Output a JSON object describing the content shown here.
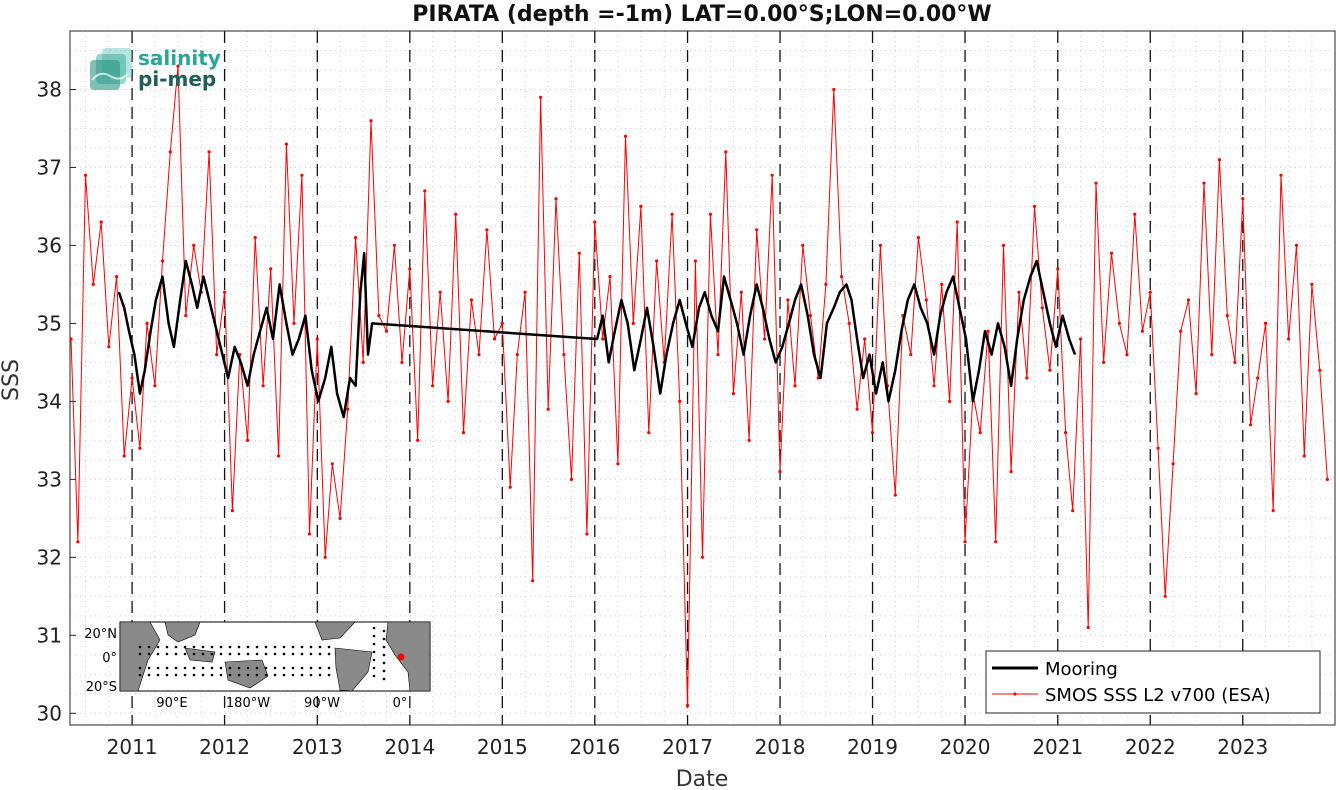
{
  "chart_data": {
    "type": "line",
    "title": "PIRATA (depth =-1m) LAT=0.00°S;LON=0.00°W",
    "xlabel": "Date",
    "ylabel": "SSS",
    "xlim": [
      "2010-05-01",
      "2023-12-31"
    ],
    "ylim": [
      29.85,
      38.75
    ],
    "x_ticks": [
      "2011",
      "2012",
      "2013",
      "2014",
      "2015",
      "2016",
      "2017",
      "2018",
      "2019",
      "2020",
      "2021",
      "2022",
      "2023"
    ],
    "y_ticks": [
      "30",
      "31",
      "32",
      "33",
      "34",
      "35",
      "36",
      "37",
      "38"
    ],
    "grid": "dotted",
    "year_boundaries": "dashed vertical lines at each January 1",
    "legend_position": "bottom-right",
    "series": [
      {
        "name": "Mooring",
        "color": "#000000",
        "style": "thick line",
        "x": [
          "2010-11-10",
          "2010-12-01",
          "2010-12-20",
          "2011-01-10",
          "2011-02-01",
          "2011-02-20",
          "2011-03-15",
          "2011-04-05",
          "2011-05-01",
          "2011-05-25",
          "2011-06-15",
          "2011-07-10",
          "2011-08-01",
          "2011-08-25",
          "2011-09-15",
          "2011-10-10",
          "2012-01-15",
          "2012-02-10",
          "2012-03-05",
          "2012-04-01",
          "2012-04-25",
          "2012-05-20",
          "2012-06-15",
          "2012-07-10",
          "2012-08-05",
          "2012-09-01",
          "2012-09-25",
          "2012-10-20",
          "2012-11-15",
          "2012-12-10",
          "2013-01-05",
          "2013-02-01",
          "2013-02-25",
          "2013-03-20",
          "2013-04-15",
          "2013-05-10",
          "2013-06-01",
          "2013-06-20",
          "2013-07-05",
          "2013-07-20",
          "2013-08-05",
          "2016-01-10",
          "2016-02-01",
          "2016-02-25",
          "2016-03-20",
          "2016-04-15",
          "2016-05-10",
          "2016-06-05",
          "2016-07-01",
          "2016-07-25",
          "2016-08-20",
          "2016-09-15",
          "2016-10-10",
          "2016-11-05",
          "2016-12-01",
          "2016-12-25",
          "2017-01-20",
          "2017-02-15",
          "2017-03-10",
          "2017-04-05",
          "2017-05-01",
          "2017-05-25",
          "2017-06-20",
          "2017-07-15",
          "2017-08-10",
          "2017-09-05",
          "2017-10-01",
          "2017-10-25",
          "2017-11-20",
          "2017-12-15",
          "2018-01-10",
          "2018-02-05",
          "2018-03-01",
          "2018-03-25",
          "2018-04-20",
          "2018-05-15",
          "2018-06-10",
          "2018-07-05",
          "2018-08-01",
          "2018-08-25",
          "2018-09-20",
          "2018-10-10",
          "2018-11-01",
          "2018-11-25",
          "2018-12-20",
          "2019-01-15",
          "2019-02-10",
          "2019-03-05",
          "2019-04-01",
          "2019-04-25",
          "2019-05-20",
          "2019-06-15",
          "2019-07-10",
          "2019-08-05",
          "2019-09-01",
          "2019-09-25",
          "2019-10-20",
          "2019-11-15",
          "2019-12-10",
          "2020-01-05",
          "2020-02-01",
          "2020-02-25",
          "2020-03-20",
          "2020-04-15",
          "2020-05-10",
          "2020-06-05",
          "2020-07-01",
          "2020-07-25",
          "2020-08-20",
          "2020-09-15",
          "2020-10-10",
          "2020-11-05",
          "2020-12-01",
          "2020-12-25",
          "2021-01-20",
          "2021-02-15",
          "2021-03-10"
        ],
        "y": [
          35.4,
          35.2,
          34.9,
          34.6,
          34.1,
          34.4,
          34.9,
          35.3,
          35.6,
          35.0,
          34.7,
          35.3,
          35.8,
          35.5,
          35.2,
          35.6,
          34.3,
          34.7,
          34.5,
          34.2,
          34.6,
          34.9,
          35.2,
          34.8,
          35.5,
          35.0,
          34.6,
          34.8,
          35.1,
          34.4,
          34.0,
          34.3,
          34.7,
          34.1,
          33.8,
          34.3,
          34.2,
          35.4,
          35.9,
          34.6,
          35.0,
          34.8,
          35.1,
          34.5,
          34.9,
          35.3,
          35.0,
          34.4,
          34.8,
          35.2,
          34.7,
          34.1,
          34.6,
          35.0,
          35.3,
          35.0,
          34.7,
          35.2,
          35.4,
          35.1,
          34.9,
          35.6,
          35.3,
          35.0,
          34.6,
          35.1,
          35.5,
          35.2,
          34.8,
          34.5,
          34.7,
          35.0,
          35.3,
          35.5,
          35.1,
          34.6,
          34.3,
          35.0,
          35.2,
          35.4,
          35.5,
          35.3,
          34.8,
          34.3,
          34.6,
          34.1,
          34.5,
          34.0,
          34.4,
          34.9,
          35.3,
          35.5,
          35.2,
          35.0,
          34.6,
          35.1,
          35.4,
          35.6,
          35.2,
          34.8,
          34.0,
          34.4,
          34.9,
          34.6,
          35.0,
          34.7,
          34.2,
          34.8,
          35.3,
          35.6,
          35.8,
          35.4,
          35.0,
          34.7,
          35.1,
          34.8,
          34.6
        ]
      },
      {
        "name": "SMOS SSS L2 v700 (ESA)",
        "color": "#ff0000",
        "style": "thin line with point markers",
        "x": [
          "2010-05-05",
          "2010-06-01",
          "2010-07-01",
          "2010-08-01",
          "2010-09-01",
          "2010-10-01",
          "2010-11-01",
          "2010-12-01",
          "2011-01-01",
          "2011-02-01",
          "2011-03-01",
          "2011-04-01",
          "2011-05-01",
          "2011-06-01",
          "2011-07-01",
          "2011-08-01",
          "2011-09-01",
          "2011-10-01",
          "2011-11-01",
          "2011-12-01",
          "2012-01-01",
          "2012-02-01",
          "2012-03-01",
          "2012-04-01",
          "2012-05-01",
          "2012-06-01",
          "2012-07-01",
          "2012-08-01",
          "2012-09-01",
          "2012-10-01",
          "2012-11-01",
          "2012-12-01",
          "2013-01-01",
          "2013-02-01",
          "2013-03-01",
          "2013-04-01",
          "2013-05-01",
          "2013-06-01",
          "2013-07-01",
          "2013-08-01",
          "2013-09-01",
          "2013-10-01",
          "2013-11-01",
          "2013-12-01",
          "2014-01-01",
          "2014-02-01",
          "2014-03-01",
          "2014-04-01",
          "2014-05-01",
          "2014-06-01",
          "2014-07-01",
          "2014-08-01",
          "2014-09-01",
          "2014-10-01",
          "2014-11-01",
          "2014-12-01",
          "2015-01-01",
          "2015-02-01",
          "2015-03-01",
          "2015-04-01",
          "2015-05-01",
          "2015-06-01",
          "2015-07-01",
          "2015-08-01",
          "2015-09-01",
          "2015-10-01",
          "2015-11-01",
          "2015-12-01",
          "2016-01-01",
          "2016-02-01",
          "2016-03-01",
          "2016-04-01",
          "2016-05-01",
          "2016-06-01",
          "2016-07-01",
          "2016-08-01",
          "2016-09-01",
          "2016-10-01",
          "2016-11-01",
          "2016-12-01",
          "2017-01-01",
          "2017-02-01",
          "2017-03-01",
          "2017-04-01",
          "2017-05-01",
          "2017-06-01",
          "2017-07-01",
          "2017-08-01",
          "2017-09-01",
          "2017-10-01",
          "2017-11-01",
          "2017-12-01",
          "2018-01-01",
          "2018-02-01",
          "2018-03-01",
          "2018-04-01",
          "2018-05-01",
          "2018-06-01",
          "2018-07-01",
          "2018-08-01",
          "2018-09-01",
          "2018-10-01",
          "2018-11-01",
          "2018-12-01",
          "2019-01-01",
          "2019-02-01",
          "2019-03-01",
          "2019-04-01",
          "2019-05-01",
          "2019-06-01",
          "2019-07-01",
          "2019-08-01",
          "2019-09-01",
          "2019-10-01",
          "2019-11-01",
          "2019-12-01",
          "2020-01-01",
          "2020-02-01",
          "2020-03-01",
          "2020-04-01",
          "2020-05-01",
          "2020-06-01",
          "2020-07-01",
          "2020-08-01",
          "2020-09-01",
          "2020-10-01",
          "2020-11-01",
          "2020-12-01",
          "2021-01-01",
          "2021-02-01",
          "2021-03-01",
          "2021-04-01",
          "2021-05-01",
          "2021-06-01",
          "2021-07-01",
          "2021-08-01",
          "2021-09-01",
          "2021-10-01",
          "2021-11-01",
          "2021-12-01",
          "2022-01-01",
          "2022-02-01",
          "2022-03-01",
          "2022-04-01",
          "2022-05-01",
          "2022-06-01",
          "2022-07-01",
          "2022-08-01",
          "2022-09-01",
          "2022-10-01",
          "2022-11-01",
          "2022-12-01",
          "2023-01-01",
          "2023-02-01",
          "2023-03-01",
          "2023-04-01",
          "2023-05-01",
          "2023-06-01",
          "2023-07-01",
          "2023-08-01",
          "2023-09-01",
          "2023-10-01",
          "2023-11-01",
          "2023-12-01"
        ],
        "y": [
          34.8,
          32.2,
          36.9,
          35.5,
          36.3,
          34.7,
          35.6,
          33.3,
          34.3,
          33.4,
          35.0,
          34.2,
          35.8,
          37.2,
          38.3,
          35.1,
          36.0,
          35.4,
          37.2,
          34.6,
          35.4,
          32.6,
          34.6,
          33.5,
          36.1,
          34.2,
          35.7,
          33.3,
          37.3,
          35.0,
          36.9,
          32.3,
          34.8,
          32.0,
          33.2,
          32.5,
          33.9,
          36.1,
          34.5,
          37.6,
          35.1,
          34.9,
          36.0,
          34.5,
          35.7,
          33.5,
          36.7,
          34.2,
          35.4,
          34.0,
          36.4,
          33.6,
          35.3,
          34.6,
          36.2,
          34.8,
          35.0,
          32.9,
          34.6,
          35.4,
          31.7,
          37.9,
          33.9,
          36.6,
          34.6,
          33.0,
          35.9,
          32.3,
          36.3,
          34.8,
          35.6,
          33.2,
          37.4,
          35.0,
          36.5,
          33.6,
          35.8,
          34.5,
          36.4,
          34.0,
          30.1,
          35.8,
          32.0,
          36.4,
          34.6,
          37.2,
          34.1,
          35.4,
          33.5,
          36.2,
          34.8,
          36.9,
          33.1,
          35.3,
          34.2,
          36.0,
          35.1,
          34.3,
          35.5,
          38.0,
          35.6,
          35.0,
          33.9,
          34.8,
          33.6,
          36.0,
          34.2,
          32.8,
          35.1,
          34.6,
          36.1,
          35.3,
          34.2,
          35.5,
          34.0,
          36.3,
          32.2,
          34.1,
          33.6,
          34.9,
          32.2,
          36.0,
          33.1,
          35.4,
          34.3,
          36.5,
          35.2,
          34.4,
          35.7,
          33.6,
          32.6,
          34.8,
          31.1,
          36.8,
          34.5,
          35.9,
          35.0,
          34.6,
          36.4,
          34.9,
          35.4,
          33.4,
          31.5,
          33.2,
          34.9,
          35.3,
          34.1,
          36.8,
          34.6,
          37.1,
          35.1,
          34.5,
          36.6,
          33.7,
          34.3,
          35.0,
          32.6,
          36.9,
          34.8,
          36.0,
          33.3,
          35.5,
          34.4,
          33.0
        ]
      }
    ]
  },
  "logo": {
    "line1": "salinity",
    "line2": "pi-mep"
  },
  "inset_map": {
    "lat_labels": [
      "20°N",
      "0°",
      "20°S"
    ],
    "lon_labels": [
      "90°E",
      "180°W",
      "90°W",
      "0°"
    ],
    "marker_color": "#ff0000"
  }
}
